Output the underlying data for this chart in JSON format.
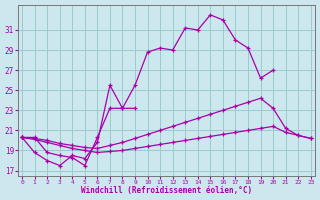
{
  "background_color": "#cce8ee",
  "grid_color": "#99cccc",
  "line_color": "#aa00aa",
  "xlabel": "Windchill (Refroidissement éolien,°C)",
  "xlim_min": -0.3,
  "xlim_max": 23.3,
  "ylim_min": 16.5,
  "ylim_max": 33.5,
  "yticks": [
    17,
    19,
    21,
    23,
    25,
    27,
    29,
    31
  ],
  "xticks": [
    0,
    1,
    2,
    3,
    4,
    5,
    6,
    7,
    8,
    9,
    10,
    11,
    12,
    13,
    14,
    15,
    16,
    17,
    18,
    19,
    20,
    21,
    22,
    23
  ],
  "line1_x": [
    0,
    1,
    2,
    3,
    4,
    5,
    6,
    7,
    8,
    9,
    10,
    11,
    12,
    13,
    14,
    15,
    16,
    17,
    18,
    19,
    20
  ],
  "line1_y": [
    20.3,
    20.3,
    18.8,
    18.5,
    18.3,
    17.5,
    20.3,
    23.2,
    23.2,
    25.5,
    28.8,
    29.2,
    29.0,
    31.2,
    31.0,
    32.5,
    32.0,
    30.0,
    29.2,
    26.2,
    27.0
  ],
  "line2_x": [
    0,
    1,
    2,
    3,
    4,
    5,
    6,
    7,
    8,
    9
  ],
  "line2_y": [
    20.3,
    18.8,
    18.0,
    17.5,
    18.5,
    18.2,
    19.8,
    25.5,
    23.2,
    23.2
  ],
  "line3_x": [
    0,
    1,
    2,
    3,
    4,
    5,
    6,
    7,
    8,
    9,
    10,
    11,
    12,
    13,
    14,
    15,
    16,
    17,
    18,
    19,
    20,
    21,
    22,
    23
  ],
  "line3_y": [
    20.3,
    20.2,
    20.0,
    19.7,
    19.5,
    19.3,
    19.2,
    19.5,
    19.8,
    20.2,
    20.6,
    21.0,
    21.4,
    21.8,
    22.2,
    22.6,
    23.0,
    23.4,
    23.8,
    24.2,
    23.2,
    21.2,
    20.5,
    20.2
  ],
  "line4_x": [
    0,
    1,
    2,
    3,
    4,
    5,
    6,
    7,
    8,
    9,
    10,
    11,
    12,
    13,
    14,
    15,
    16,
    17,
    18,
    19,
    20,
    21,
    22,
    23
  ],
  "line4_y": [
    20.3,
    20.1,
    19.8,
    19.5,
    19.2,
    19.0,
    18.8,
    18.9,
    19.0,
    19.2,
    19.4,
    19.6,
    19.8,
    20.0,
    20.2,
    20.4,
    20.6,
    20.8,
    21.0,
    21.2,
    21.4,
    20.8,
    20.5,
    20.2
  ]
}
